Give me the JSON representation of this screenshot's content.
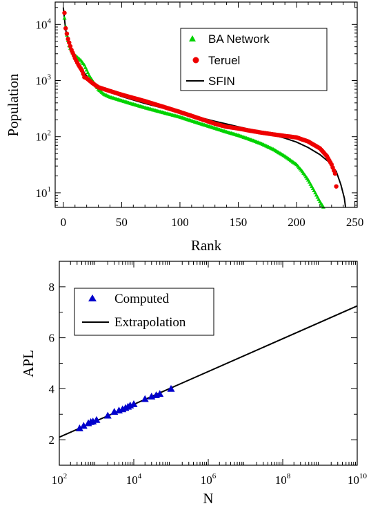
{
  "chart_data": [
    {
      "id": "rank-population",
      "type": "scatter",
      "title": "",
      "xlabel": "Rank",
      "ylabel": "Population",
      "xlim": [
        -7,
        252
      ],
      "ylim": [
        5.5,
        25000
      ],
      "yscale": "log",
      "xticks": [
        0,
        50,
        100,
        150,
        200,
        250
      ],
      "yticks": [
        10,
        100,
        1000,
        10000
      ],
      "ytick_labels": [
        {
          "base": "10",
          "exp": "1"
        },
        {
          "base": "10",
          "exp": "2"
        },
        {
          "base": "10",
          "exp": "3"
        },
        {
          "base": "10",
          "exp": "4"
        }
      ],
      "legend_position": "top-right",
      "series": [
        {
          "name": "BA Network",
          "marker": "triangle",
          "color": "#00d200",
          "points": [
            [
              1,
              13000
            ],
            [
              3,
              6500
            ],
            [
              5,
              4200
            ],
            [
              8,
              3100
            ],
            [
              12,
              2600
            ],
            [
              15,
              2300
            ],
            [
              18,
              1900
            ],
            [
              20,
              1550
            ],
            [
              22,
              1250
            ],
            [
              25,
              1000
            ],
            [
              30,
              700
            ],
            [
              35,
              570
            ],
            [
              40,
              510
            ],
            [
              50,
              440
            ],
            [
              60,
              380
            ],
            [
              70,
              330
            ],
            [
              80,
              290
            ],
            [
              90,
              255
            ],
            [
              100,
              225
            ],
            [
              110,
              192
            ],
            [
              120,
              165
            ],
            [
              130,
              142
            ],
            [
              140,
              122
            ],
            [
              150,
              106
            ],
            [
              160,
              90
            ],
            [
              170,
              75
            ],
            [
              180,
              60
            ],
            [
              190,
              45
            ],
            [
              200,
              32
            ],
            [
              205,
              24
            ],
            [
              210,
              17
            ],
            [
              215,
              11
            ],
            [
              220,
              7
            ],
            [
              223,
              5.6
            ]
          ]
        },
        {
          "name": "Teruel",
          "marker": "circle",
          "color": "#ee0000",
          "points": [
            [
              1,
              16000
            ],
            [
              2,
              8500
            ],
            [
              4,
              5500
            ],
            [
              7,
              3500
            ],
            [
              10,
              2500
            ],
            [
              13,
              1900
            ],
            [
              16,
              1500
            ],
            [
              18,
              1150
            ],
            [
              20,
              1100
            ],
            [
              25,
              900
            ],
            [
              30,
              760
            ],
            [
              40,
              650
            ],
            [
              50,
              560
            ],
            [
              60,
              490
            ],
            [
              70,
              430
            ],
            [
              80,
              370
            ],
            [
              90,
              320
            ],
            [
              100,
              275
            ],
            [
              110,
              235
            ],
            [
              120,
              200
            ],
            [
              130,
              170
            ],
            [
              140,
              150
            ],
            [
              150,
              140
            ],
            [
              160,
              128
            ],
            [
              170,
              118
            ],
            [
              180,
              110
            ],
            [
              190,
              103
            ],
            [
              200,
              97
            ],
            [
              210,
              82
            ],
            [
              220,
              62
            ],
            [
              226,
              45
            ],
            [
              230,
              32
            ],
            [
              233,
              22
            ],
            [
              234,
              13
            ]
          ]
        },
        {
          "name": "SFIN",
          "marker": "line",
          "color": "#000000",
          "points": [
            [
              0,
              20000
            ],
            [
              2,
              8000
            ],
            [
              5,
              4500
            ],
            [
              10,
              2500
            ],
            [
              15,
              1700
            ],
            [
              20,
              1200
            ],
            [
              25,
              950
            ],
            [
              30,
              800
            ],
            [
              40,
              620
            ],
            [
              50,
              520
            ],
            [
              60,
              450
            ],
            [
              70,
              390
            ],
            [
              80,
              345
            ],
            [
              90,
              305
            ],
            [
              100,
              272
            ],
            [
              110,
              240
            ],
            [
              120,
              212
            ],
            [
              130,
              188
            ],
            [
              140,
              168
            ],
            [
              150,
              150
            ],
            [
              160,
              135
            ],
            [
              170,
              121
            ],
            [
              180,
              107
            ],
            [
              190,
              94
            ],
            [
              200,
              80
            ],
            [
              210,
              64
            ],
            [
              220,
              48
            ],
            [
              228,
              35
            ],
            [
              234,
              24
            ],
            [
              238,
              14
            ],
            [
              241,
              8
            ],
            [
              242,
              5.5
            ]
          ]
        }
      ]
    },
    {
      "id": "apl-vs-n",
      "type": "scatter",
      "title": "",
      "xlabel": "N",
      "ylabel": "APL",
      "xscale": "log",
      "xlim": [
        100,
        10000000000
      ],
      "ylim": [
        1,
        9
      ],
      "xticks": [
        100,
        10000,
        1000000,
        100000000,
        10000000000
      ],
      "xtick_labels": [
        {
          "base": "10",
          "exp": "2"
        },
        {
          "base": "10",
          "exp": "4"
        },
        {
          "base": "10",
          "exp": "6"
        },
        {
          "base": "10",
          "exp": "8"
        },
        {
          "base": "10",
          "exp": "10"
        }
      ],
      "yticks": [
        2,
        4,
        6,
        8
      ],
      "legend_position": "top-left",
      "series": [
        {
          "name": "Computed",
          "marker": "triangle",
          "color": "#0000cc",
          "points": [
            [
              350,
              2.45
            ],
            [
              450,
              2.55
            ],
            [
              600,
              2.65
            ],
            [
              700,
              2.7
            ],
            [
              800,
              2.72
            ],
            [
              1000,
              2.78
            ],
            [
              2000,
              2.95
            ],
            [
              3000,
              3.1
            ],
            [
              4000,
              3.15
            ],
            [
              5000,
              3.2
            ],
            [
              6000,
              3.25
            ],
            [
              7000,
              3.3
            ],
            [
              8000,
              3.35
            ],
            [
              10000,
              3.4
            ],
            [
              20000,
              3.6
            ],
            [
              30000,
              3.7
            ],
            [
              40000,
              3.75
            ],
            [
              50000,
              3.8
            ],
            [
              100000,
              4.0
            ]
          ]
        },
        {
          "name": "Extrapolation",
          "marker": "line",
          "color": "#000000",
          "points": [
            [
              100,
              2.1
            ],
            [
              10000000000,
              7.25
            ]
          ]
        }
      ]
    }
  ]
}
